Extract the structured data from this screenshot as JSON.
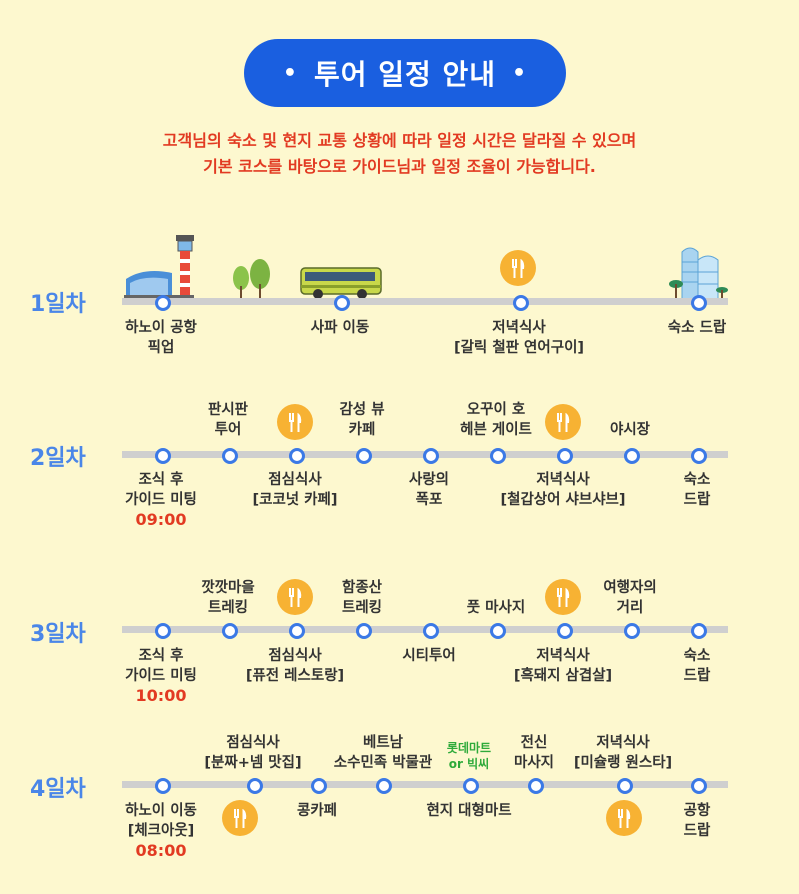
{
  "title": "투어 일정 안내",
  "title_dot": "•",
  "notice": [
    "고객님의 숙소 및 현지 교통 상황에 따라 일정 시간은 달라질 수 있으며",
    "기본 코스를 바탕으로 가이드님과 일정 조율이 가능합니다."
  ],
  "colors": {
    "accent": "#1a5fe0",
    "node": "#3b79e6",
    "notice": "#e23a22",
    "food": "#f7b233",
    "day": "#4a86e8"
  },
  "days": [
    {
      "label": "1일차",
      "stops": [
        {
          "lines": [
            "하노이 공항",
            "픽업"
          ]
        },
        {
          "lines": [
            "사파 이동"
          ]
        },
        {
          "lines": [
            "저녁식사",
            "[갈릭 철판 연어구이]"
          ],
          "icon": "fork-knife-icon"
        },
        {
          "lines": [
            "숙소 드랍"
          ]
        }
      ]
    },
    {
      "label": "2일차",
      "stops": [
        {
          "lines": [
            "조식 후",
            "가이드 미팅"
          ],
          "time": "09:00"
        },
        {
          "lines": [
            "판시판",
            "투어"
          ]
        },
        {
          "lines": [
            "점심식사",
            "[코코넛 카페]"
          ],
          "icon": "fork-knife-icon"
        },
        {
          "lines": [
            "감성 뷰",
            "카페"
          ]
        },
        {
          "lines": [
            "사랑의",
            "폭포"
          ]
        },
        {
          "lines": [
            "오꾸이 호",
            "헤븐 게이트"
          ]
        },
        {
          "lines": [
            "저녁식사",
            "[철갑상어 샤브샤브]"
          ],
          "icon": "fork-knife-icon"
        },
        {
          "lines": [
            "야시장"
          ]
        },
        {
          "lines": [
            "숙소",
            "드랍"
          ]
        }
      ]
    },
    {
      "label": "3일차",
      "stops": [
        {
          "lines": [
            "조식 후",
            "가이드 미팅"
          ],
          "time": "10:00"
        },
        {
          "lines": [
            "깟깟마을",
            "트레킹"
          ]
        },
        {
          "lines": [
            "점심식사",
            "[퓨전 레스토랑]"
          ],
          "icon": "fork-knife-icon"
        },
        {
          "lines": [
            "함종산",
            "트레킹"
          ]
        },
        {
          "lines": [
            "시티투어"
          ]
        },
        {
          "lines": [
            "풋 마사지"
          ]
        },
        {
          "lines": [
            "저녁식사",
            "[흑돼지 삼겹살]"
          ],
          "icon": "fork-knife-icon"
        },
        {
          "lines": [
            "여행자의",
            "거리"
          ]
        },
        {
          "lines": [
            "숙소",
            "드랍"
          ]
        }
      ]
    },
    {
      "label": "4일차",
      "stops": [
        {
          "lines": [
            "하노이 이동",
            "[체크아웃]"
          ],
          "time": "08:00"
        },
        {
          "lines": [
            "점심식사",
            "[분짜+넴 맛집]"
          ],
          "icon": "fork-knife-icon"
        },
        {
          "lines": [
            "콩카페"
          ]
        },
        {
          "lines": [
            "베트남",
            "소수민족 박물관"
          ]
        },
        {
          "lines": [
            "롯데마트",
            "or 빅씨"
          ]
        },
        {
          "lines": [
            "현지 대형마트"
          ]
        },
        {
          "lines": [
            "전신",
            "마사지"
          ]
        },
        {
          "lines": [
            "저녁식사",
            "[미슐랭 원스타]"
          ],
          "icon": "fork-knife-icon"
        },
        {
          "lines": [
            "공항",
            "드랍"
          ]
        }
      ]
    }
  ]
}
